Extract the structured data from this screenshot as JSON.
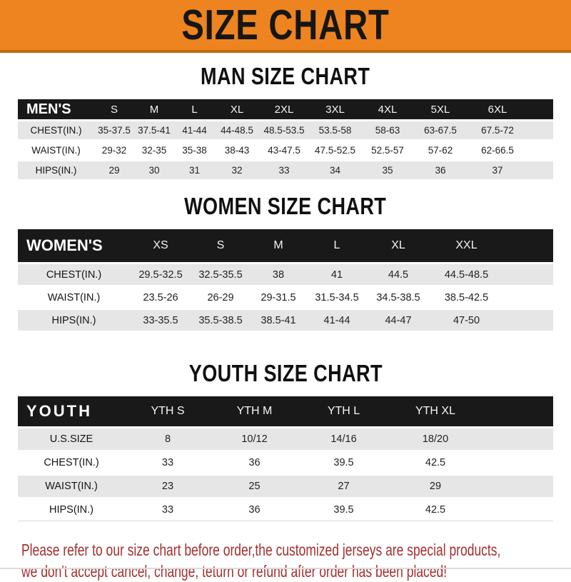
{
  "banner": {
    "title": "SIZE CHART"
  },
  "sections": [
    {
      "title": "MAN SIZE CHART",
      "header_label": "MEN'S",
      "sizes": [
        "S",
        "M",
        "L",
        "XL",
        "2XL",
        "3XL",
        "4XL",
        "5XL",
        "6XL"
      ],
      "rows": [
        {
          "label": "CHEST(IN.)",
          "values": [
            "35-37.5",
            "37.5-41",
            "41-44",
            "44-48.5",
            "48.5-53.5",
            "53.5-58",
            "58-63",
            "63-67.5",
            "67.5-72"
          ]
        },
        {
          "label": "WAIST(IN.)",
          "values": [
            "29-32",
            "32-35",
            "35-38",
            "38-43",
            "43-47.5",
            "47.5-52.5",
            "52.5-57",
            "57-62",
            "62-66.5"
          ]
        },
        {
          "label": "HIPS(IN.)",
          "values": [
            "29",
            "30",
            "31",
            "32",
            "33",
            "34",
            "35",
            "36",
            "37"
          ]
        }
      ]
    },
    {
      "title": "WOMEN SIZE CHART",
      "header_label": "WOMEN'S",
      "sizes": [
        "XS",
        "S",
        "M",
        "L",
        "XL",
        "XXL"
      ],
      "rows": [
        {
          "label": "CHEST(IN.)",
          "values": [
            "29.5-32.5",
            "32.5-35.5",
            "38",
            "41",
            "44.5",
            "44.5-48.5"
          ]
        },
        {
          "label": "WAIST(IN.)",
          "values": [
            "23.5-26",
            "26-29",
            "29-31.5",
            "31.5-34.5",
            "34.5-38.5",
            "38.5-42.5"
          ]
        },
        {
          "label": "HIPS(IN.)",
          "values": [
            "33-35.5",
            "35.5-38.5",
            "38.5-41",
            "41-44",
            "44-47",
            "47-50"
          ]
        }
      ]
    },
    {
      "title": "YOUTH SIZE CHART",
      "header_label": "YOUTH",
      "sizes": [
        "YTH S",
        "YTH M",
        "YTH L",
        "YTH XL"
      ],
      "rows": [
        {
          "label": "U.S.SIZE",
          "values": [
            "8",
            "10/12",
            "14/16",
            "18/20"
          ]
        },
        {
          "label": "CHEST(IN.)",
          "values": [
            "33",
            "36",
            "39.5",
            "42.5"
          ]
        },
        {
          "label": "WAIST(IN.)",
          "values": [
            "23",
            "25",
            "27",
            "29"
          ]
        },
        {
          "label": "HIPS(IN.)",
          "values": [
            "33",
            "36",
            "39.5",
            "42.5"
          ]
        }
      ]
    }
  ],
  "footer": {
    "line1": "Please refer to our size chart before order,the customized jerseys are special products,",
    "line2": "we don't accept cancel, change, teturn or refund after order has been placed!"
  },
  "colors": {
    "banner_orange": "#EE8420",
    "banner_border": "#C1690E",
    "header_black": "#191919",
    "row_gray": "#E6E6E7",
    "title_black": "#101010",
    "footer_red": "#A52F2F"
  }
}
